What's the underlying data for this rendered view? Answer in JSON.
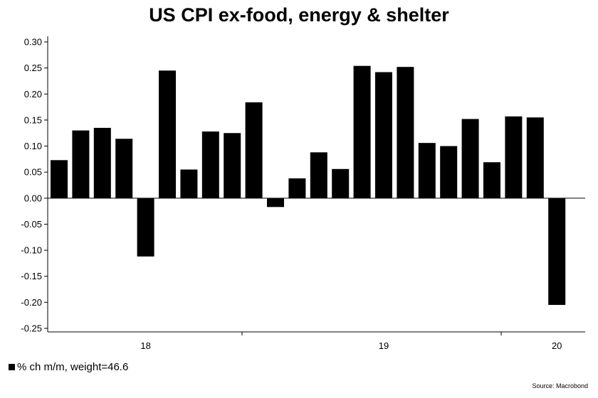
{
  "chart_data": {
    "type": "bar",
    "title": "US CPI ex-food, energy & shelter",
    "xlabel": "",
    "ylabel": "",
    "ylim": [
      -0.25,
      0.3
    ],
    "yticks": [
      "0.30",
      "0.25",
      "0.20",
      "0.15",
      "0.10",
      "0.05",
      "0.00",
      "-0.05",
      "-0.10",
      "-0.15",
      "-0.20",
      "-0.25"
    ],
    "ytick_values": [
      0.3,
      0.25,
      0.2,
      0.15,
      0.1,
      0.05,
      0.0,
      -0.05,
      -0.1,
      -0.15,
      -0.2,
      -0.25
    ],
    "xtick_labels": [
      {
        "label": "18",
        "index": 4
      },
      {
        "label": "19",
        "index": 15
      },
      {
        "label": "20",
        "index": 23
      }
    ],
    "series": [
      {
        "name": "% ch m/m, weight=46.6",
        "color": "#000000",
        "values": [
          0.073,
          0.13,
          0.135,
          0.114,
          -0.112,
          0.245,
          0.055,
          0.128,
          0.125,
          0.184,
          -0.017,
          0.038,
          0.088,
          0.056,
          0.254,
          0.242,
          0.252,
          0.106,
          0.1,
          0.152,
          0.069,
          0.157,
          0.155,
          -0.205
        ]
      }
    ],
    "grid": false,
    "legend_position": "bottom-left"
  },
  "legend": {
    "label": "% ch m/m, weight=46.6"
  },
  "source": "Source: Macrobond"
}
